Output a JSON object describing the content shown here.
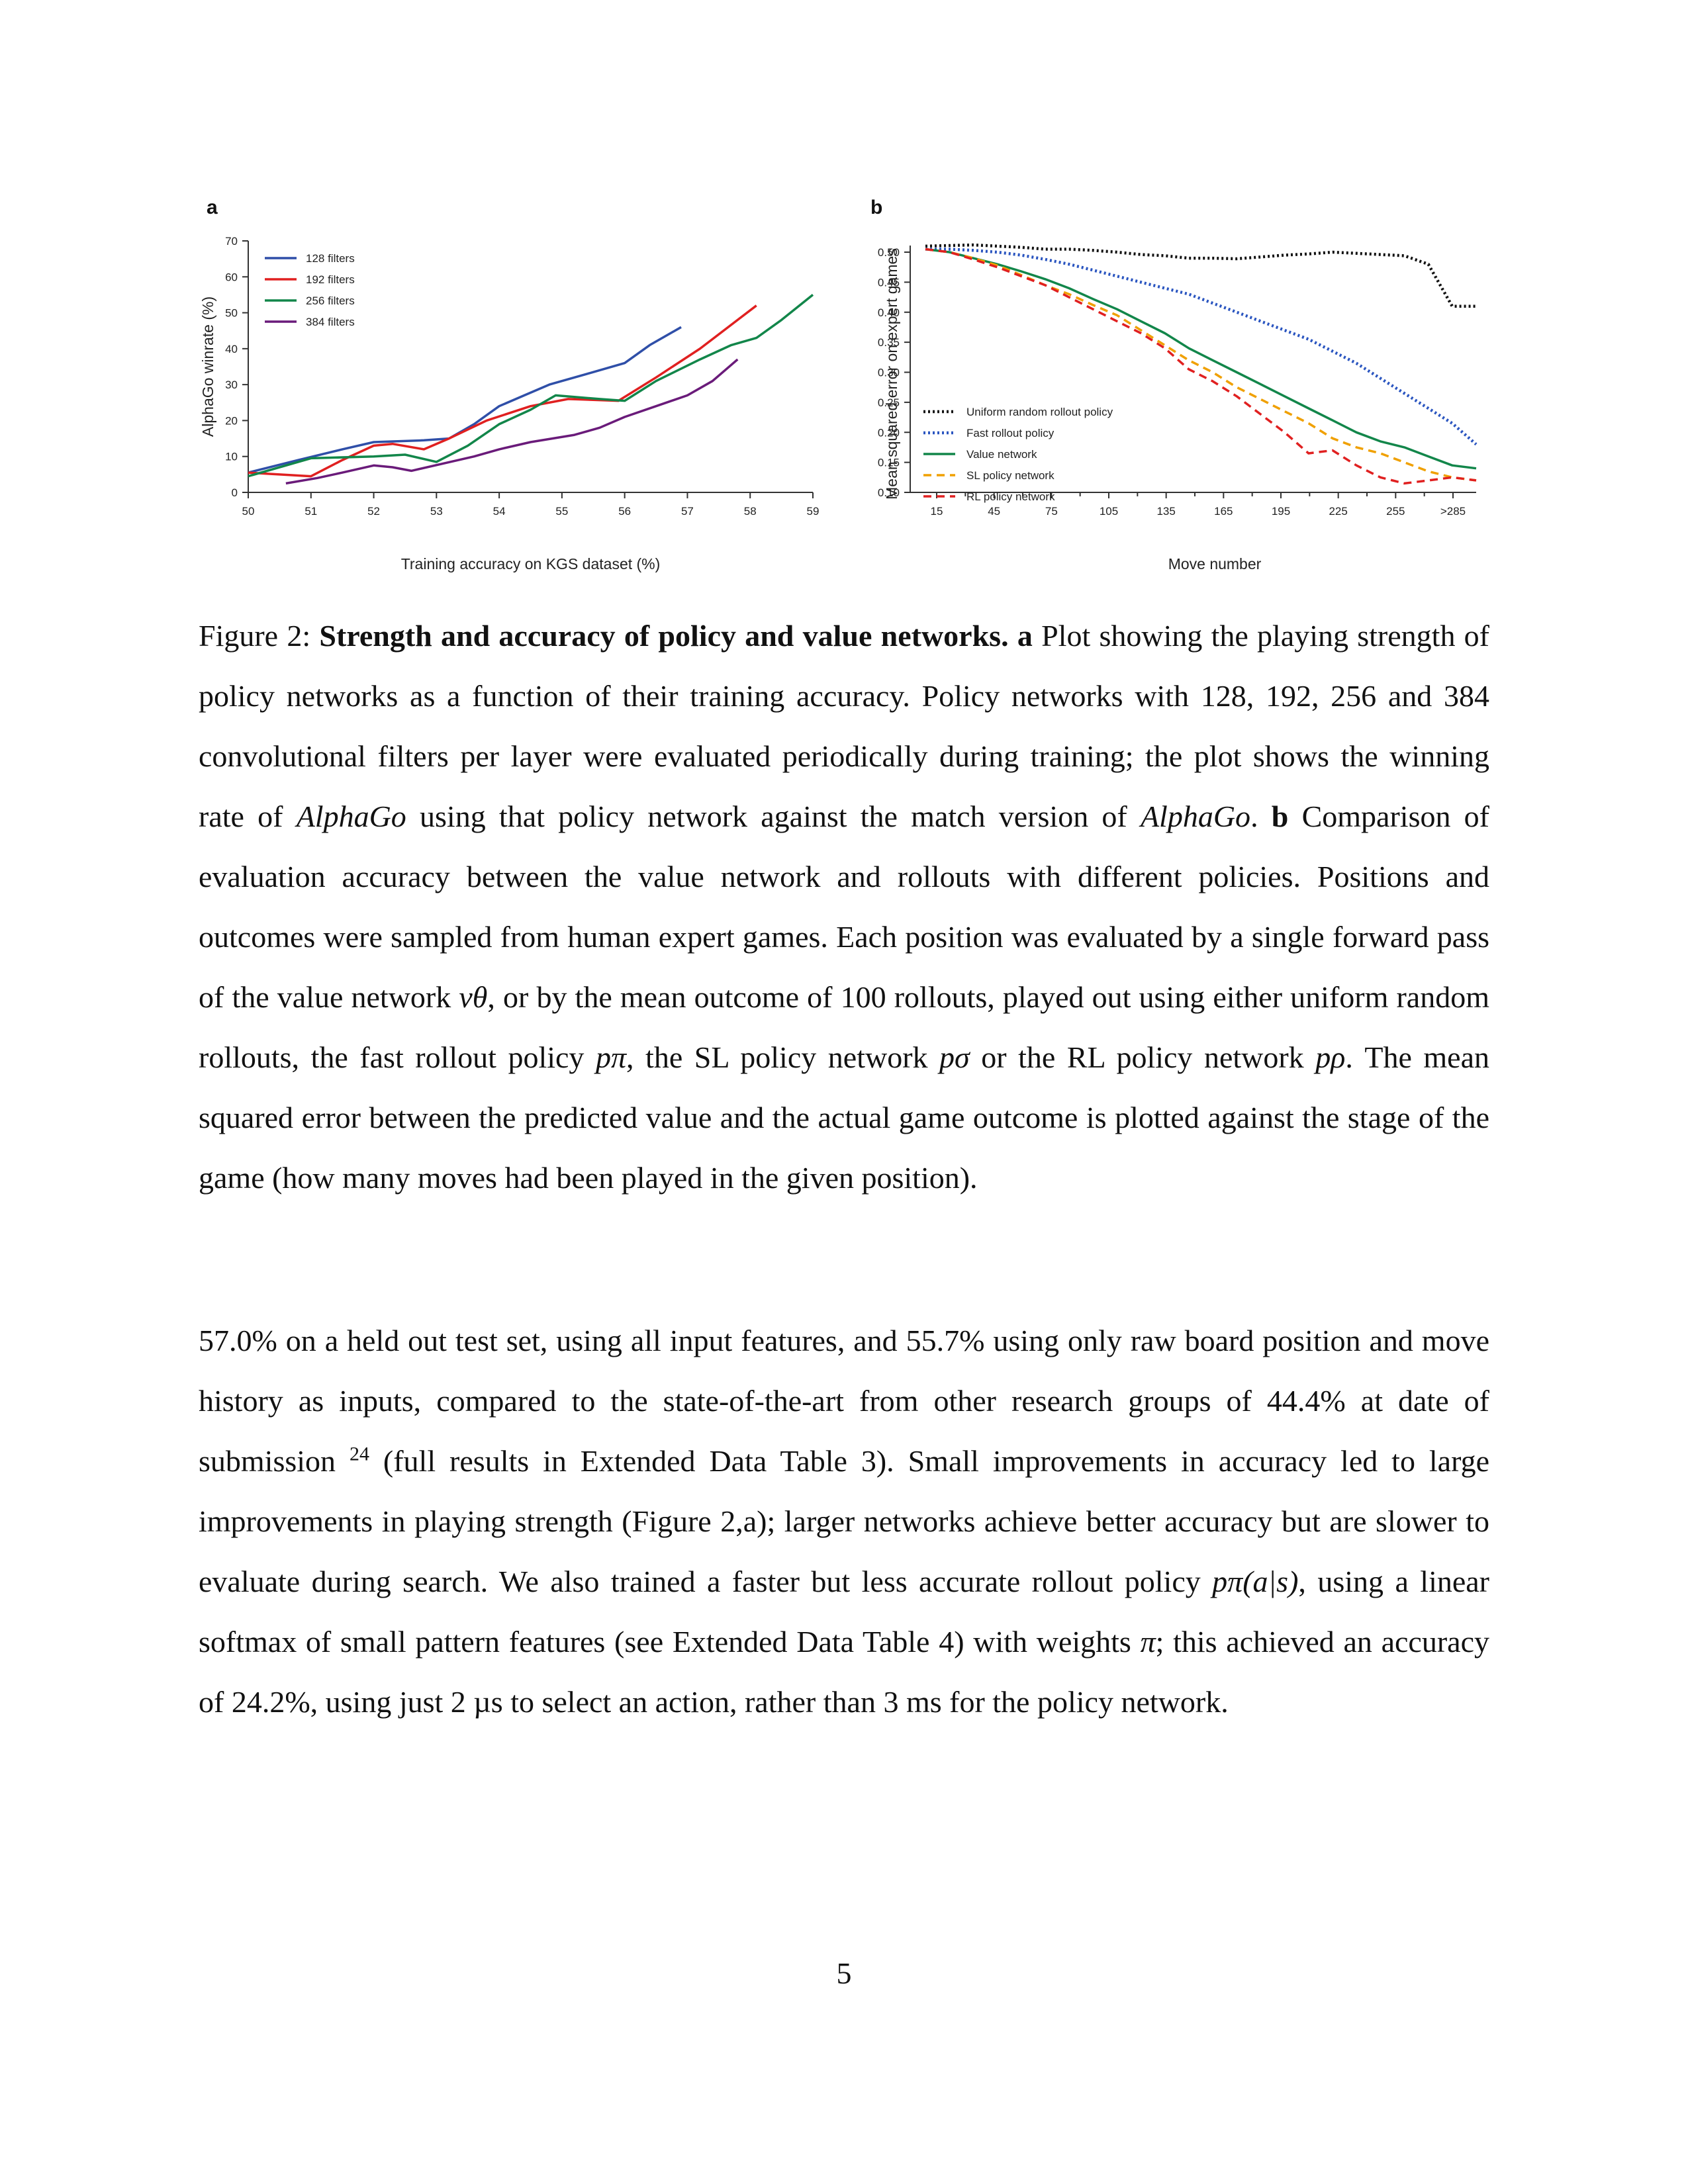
{
  "figure": {
    "panel_a_letter": "a",
    "panel_b_letter": "b",
    "legend_colors": {
      "128 filters": "#2f4fa8",
      "192 filters": "#e02020",
      "256 filters": "#12864a",
      "384 filters": "#6a1b7a",
      "Uniform random rollout policy": "#111111",
      "Fast rollout policy": "#2a55c0",
      "Value network": "#12864a",
      "SL policy network": "#f0a000",
      "RL policy network": "#e02020"
    }
  },
  "chart_data": [
    {
      "type": "line",
      "panel": "a",
      "xlabel": "Training accuracy on KGS dataset (%)",
      "ylabel": "AlphaGo winrate (%)",
      "xlim": [
        50,
        59
      ],
      "ylim": [
        0,
        70
      ],
      "xticks": [
        "50",
        "51",
        "52",
        "53",
        "54",
        "55",
        "56",
        "57",
        "58",
        "59"
      ],
      "yticks": [
        "0",
        "10",
        "20",
        "30",
        "40",
        "50",
        "60",
        "70"
      ],
      "legend_position": "top-left",
      "series": [
        {
          "name": "128 filters",
          "style": "solid",
          "points": [
            [
              50.0,
              5.5
            ],
            [
              50.8,
              9
            ],
            [
              51.5,
              12
            ],
            [
              52.0,
              14
            ],
            [
              52.8,
              14.5
            ],
            [
              53.2,
              15
            ],
            [
              53.6,
              19
            ],
            [
              54.0,
              24
            ],
            [
              54.4,
              27
            ],
            [
              54.8,
              30
            ],
            [
              55.4,
              33
            ],
            [
              56.0,
              36
            ],
            [
              56.4,
              41
            ],
            [
              56.9,
              46
            ]
          ]
        },
        {
          "name": "192 filters",
          "style": "solid",
          "points": [
            [
              50.0,
              5.5
            ],
            [
              51.0,
              4.5
            ],
            [
              51.5,
              9
            ],
            [
              52.0,
              13
            ],
            [
              52.3,
              13.5
            ],
            [
              52.8,
              12
            ],
            [
              53.2,
              15
            ],
            [
              53.8,
              20
            ],
            [
              54.5,
              24
            ],
            [
              55.1,
              26
            ],
            [
              55.9,
              25.5
            ],
            [
              56.5,
              32
            ],
            [
              57.2,
              40
            ],
            [
              57.8,
              48
            ],
            [
              58.1,
              52
            ]
          ]
        },
        {
          "name": "256 filters",
          "style": "solid",
          "points": [
            [
              50.0,
              4.5
            ],
            [
              51.0,
              9.5
            ],
            [
              52.0,
              10
            ],
            [
              52.5,
              10.5
            ],
            [
              53.0,
              8.5
            ],
            [
              53.5,
              13
            ],
            [
              54.0,
              19
            ],
            [
              54.5,
              23
            ],
            [
              54.9,
              27
            ],
            [
              55.6,
              26
            ],
            [
              56.0,
              25.5
            ],
            [
              56.5,
              31
            ],
            [
              57.2,
              37
            ],
            [
              57.7,
              41
            ],
            [
              58.1,
              43
            ],
            [
              58.5,
              48
            ],
            [
              59.0,
              55
            ]
          ]
        },
        {
          "name": "384 filters",
          "style": "solid",
          "points": [
            [
              50.6,
              2.5
            ],
            [
              51.1,
              4
            ],
            [
              51.5,
              5.5
            ],
            [
              52.0,
              7.5
            ],
            [
              52.3,
              7
            ],
            [
              52.6,
              6
            ],
            [
              53.1,
              8
            ],
            [
              53.6,
              10
            ],
            [
              54.0,
              12
            ],
            [
              54.5,
              14
            ],
            [
              55.2,
              16
            ],
            [
              55.6,
              18
            ],
            [
              56.0,
              21
            ],
            [
              56.5,
              24
            ],
            [
              57.0,
              27
            ],
            [
              57.4,
              31
            ],
            [
              57.8,
              37
            ]
          ]
        }
      ]
    },
    {
      "type": "line",
      "panel": "b",
      "xlabel": "Move number",
      "ylabel": "Mean squared error on expert games",
      "xticks": [
        "15",
        "45",
        "75",
        "105",
        "135",
        "165",
        "195",
        "225",
        "255",
        ">285"
      ],
      "yticks": [
        "0.10",
        "0.15",
        "0.20",
        "0.25",
        "0.30",
        "0.35",
        "0.40",
        "0.45",
        "0.50"
      ],
      "ylim": [
        0.1,
        0.5
      ],
      "legend_position": "bottom-left",
      "series": [
        {
          "name": "Uniform random rollout policy",
          "style": "dotted",
          "values": [
            0.51,
            0.511,
            0.512,
            0.51,
            0.508,
            0.505,
            0.505,
            0.503,
            0.5,
            0.496,
            0.494,
            0.49,
            0.49,
            0.489,
            0.492,
            0.495,
            0.497,
            0.5,
            0.498,
            0.496,
            0.494,
            0.48,
            0.41,
            0.41
          ]
        },
        {
          "name": "Fast rollout policy",
          "style": "dotted",
          "values": [
            0.505,
            0.505,
            0.503,
            0.5,
            0.495,
            0.488,
            0.48,
            0.47,
            0.46,
            0.45,
            0.44,
            0.43,
            0.415,
            0.4,
            0.385,
            0.37,
            0.355,
            0.335,
            0.315,
            0.29,
            0.265,
            0.24,
            0.215,
            0.18
          ]
        },
        {
          "name": "Value network",
          "style": "solid",
          "values": [
            0.505,
            0.5,
            0.49,
            0.48,
            0.468,
            0.455,
            0.44,
            0.422,
            0.405,
            0.385,
            0.365,
            0.34,
            0.32,
            0.3,
            0.28,
            0.26,
            0.24,
            0.22,
            0.2,
            0.185,
            0.175,
            0.16,
            0.145,
            0.14
          ]
        },
        {
          "name": "SL policy network",
          "style": "dashed",
          "values": [
            0.505,
            0.5,
            0.49,
            0.478,
            0.462,
            0.445,
            0.43,
            0.412,
            0.395,
            0.37,
            0.345,
            0.32,
            0.3,
            0.275,
            0.255,
            0.235,
            0.215,
            0.19,
            0.175,
            0.165,
            0.15,
            0.135,
            0.125,
            0.12
          ]
        },
        {
          "name": "RL policy network",
          "style": "dashed",
          "values": [
            0.505,
            0.5,
            0.488,
            0.475,
            0.46,
            0.445,
            0.425,
            0.405,
            0.385,
            0.365,
            0.34,
            0.305,
            0.285,
            0.26,
            0.23,
            0.2,
            0.165,
            0.17,
            0.145,
            0.125,
            0.115,
            0.12,
            0.125,
            0.12
          ]
        }
      ]
    }
  ],
  "caption": {
    "prefix": "Figure 2: ",
    "title": "Strength and accuracy of policy and value networks.",
    "label_a": "a",
    "text_a_1": " Plot showing the playing strength of policy networks as a function of their training accuracy. Policy networks with 128, 192, 256 and 384 convolutional filters per layer were evaluated periodically during training; the plot shows the winning rate of ",
    "alphago_1": "AlphaGo",
    "text_a_2": " using that policy network against the match version of ",
    "alphago_2": "AlphaGo",
    "text_a_3": ". ",
    "label_b": "b",
    "text_b_1": " Comparison of evaluation accuracy between the value network and rollouts with different policies. Positions and outcomes were sampled from human expert games. Each position was evaluated by a single forward pass of the value network ",
    "math_v": "vθ",
    "text_b_2": ", or by the mean outcome of 100 rollouts, played out using either uniform random rollouts, the fast rollout policy ",
    "math_p_pi": "pπ",
    "text_b_3": ", the SL policy network ",
    "math_p_sigma": "pσ",
    "text_b_4": " or the RL policy network ",
    "math_p_rho": "pρ",
    "text_b_5": ". The mean squared error between the predicted value and the actual game outcome is plotted against the stage of the game (how many moves had been played in the given position)."
  },
  "body": {
    "text_1": "57.0% on a held out test set, using all input features, and 55.7% using only raw board position and move history as inputs, compared to the state-of-the-art from other research groups of 44.4% at date of submission ",
    "ref_24": "24",
    "text_2": " (full results in Extended Data Table 3). Small improvements in accuracy led to large improvements in playing strength (Figure 2,a); larger networks achieve better accuracy but are slower to evaluate during search. We also trained a faster but less accurate rollout policy ",
    "math_ppi_as": "pπ(a|s)",
    "text_3": ", using a linear softmax of small pattern features (see Extended Data Table 4) with weights ",
    "math_pi": "π",
    "text_4": "; this achieved an accuracy of 24.2%, using just ",
    "time_2us": "2 µs",
    "text_5": " to select an action, rather than ",
    "time_3ms": "3 ms",
    "text_6": " for the policy network."
  },
  "page_number": "5"
}
